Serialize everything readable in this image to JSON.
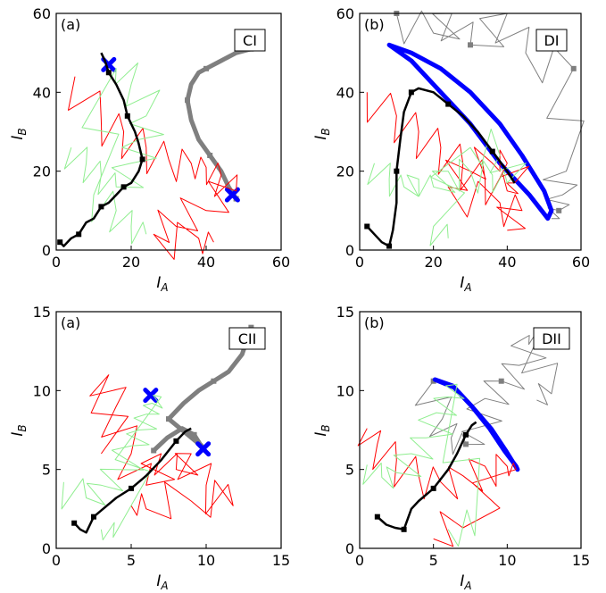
{
  "colors": {
    "black": "#000000",
    "gray": "#7f7f7f",
    "red": "#ff0000",
    "lightgreen": "#90ee90",
    "blue": "#0000ff"
  },
  "chart_data": [
    {
      "type": "line",
      "panel_tag": "(a)",
      "box_label": "CI",
      "xlabel": "I",
      "xlabel_sub": "A",
      "ylabel": "I",
      "ylabel_sub": "B",
      "xlim": [
        0,
        60
      ],
      "ylim": [
        0,
        60
      ],
      "xticks": [
        0,
        20,
        40,
        60
      ],
      "yticks": [
        0,
        20,
        40,
        60
      ],
      "series": [
        {
          "color": "black",
          "kind": "path",
          "points": [
            [
              1,
              2
            ],
            [
              2,
              1
            ],
            [
              4,
              3
            ],
            [
              6,
              4
            ],
            [
              8,
              7
            ],
            [
              10,
              8
            ],
            [
              12,
              11
            ],
            [
              14,
              12
            ],
            [
              16,
              14
            ],
            [
              18,
              16
            ],
            [
              20,
              17
            ],
            [
              22,
              20
            ],
            [
              23,
              23
            ],
            [
              22,
              27
            ],
            [
              21,
              30
            ],
            [
              19,
              34
            ],
            [
              18,
              38
            ],
            [
              16,
              42
            ],
            [
              14,
              45
            ],
            [
              13,
              48
            ],
            [
              12,
              50
            ]
          ]
        },
        {
          "color": "gray",
          "kind": "path",
          "points": [
            [
              48,
              13
            ],
            [
              46,
              16
            ],
            [
              44,
              20
            ],
            [
              41,
              24
            ],
            [
              38,
              28
            ],
            [
              36,
              33
            ],
            [
              35,
              38
            ],
            [
              36,
              42
            ],
            [
              38,
              45
            ],
            [
              40,
              46
            ],
            [
              44,
              48
            ],
            [
              48,
              50
            ],
            [
              52,
              51
            ],
            [
              55,
              51
            ]
          ]
        },
        {
          "color": "red",
          "kind": "fan",
          "points": [
            [
              5,
              44
            ],
            [
              12,
              33
            ],
            [
              18,
              30
            ],
            [
              24,
              26
            ],
            [
              30,
              23
            ],
            [
              36,
              22
            ],
            [
              40,
              21
            ],
            [
              44,
              19
            ],
            [
              48,
              15
            ],
            [
              40,
              10
            ],
            [
              32,
              6
            ],
            [
              26,
              4
            ],
            [
              38,
              3
            ],
            [
              42,
              2
            ]
          ]
        },
        {
          "color": "lightgreen",
          "kind": "fan",
          "points": [
            [
              4,
              26
            ],
            [
              8,
              22
            ],
            [
              12,
              19
            ],
            [
              16,
              16
            ],
            [
              20,
              22
            ],
            [
              22,
              28
            ],
            [
              24,
              34
            ],
            [
              20,
              42
            ],
            [
              16,
              46
            ],
            [
              10,
              14
            ],
            [
              16,
              10
            ],
            [
              20,
              6
            ],
            [
              24,
              4
            ]
          ]
        },
        {
          "color": "blue",
          "kind": "marker",
          "points": [
            [
              14,
              47
            ],
            [
              47,
              14
            ]
          ]
        }
      ]
    },
    {
      "type": "line",
      "panel_tag": "(b)",
      "box_label": "DI",
      "xlabel": "I",
      "xlabel_sub": "A",
      "ylabel": "I",
      "ylabel_sub": "B",
      "xlim": [
        0,
        60
      ],
      "ylim": [
        0,
        60
      ],
      "xticks": [
        0,
        20,
        40,
        60
      ],
      "yticks": [
        0,
        20,
        40,
        60
      ],
      "series": [
        {
          "color": "black",
          "kind": "path",
          "points": [
            [
              2,
              6
            ],
            [
              4,
              4
            ],
            [
              6,
              2
            ],
            [
              8,
              1
            ],
            [
              9,
              5
            ],
            [
              10,
              12
            ],
            [
              10,
              20
            ],
            [
              11,
              28
            ],
            [
              12,
              35
            ],
            [
              14,
              40
            ],
            [
              16,
              41
            ],
            [
              20,
              40
            ],
            [
              24,
              37
            ],
            [
              28,
              34
            ],
            [
              32,
              30
            ],
            [
              36,
              25
            ],
            [
              40,
              20
            ],
            [
              42,
              17
            ]
          ]
        },
        {
          "color": "gray",
          "kind": "fan",
          "points": [
            [
              10,
              60
            ],
            [
              20,
              55
            ],
            [
              25,
              60
            ],
            [
              30,
              52
            ],
            [
              40,
              60
            ],
            [
              45,
              50
            ],
            [
              58,
              46
            ],
            [
              56,
              20
            ],
            [
              55,
              14
            ],
            [
              54,
              10
            ],
            [
              52,
              8
            ]
          ]
        },
        {
          "color": "blue",
          "kind": "loop",
          "points": [
            [
              8,
              52
            ],
            [
              14,
              50
            ],
            [
              22,
              46
            ],
            [
              30,
              40
            ],
            [
              38,
              32
            ],
            [
              44,
              24
            ],
            [
              50,
              15
            ],
            [
              52,
              10
            ],
            [
              51,
              8
            ],
            [
              46,
              14
            ],
            [
              38,
              22
            ],
            [
              30,
              32
            ],
            [
              22,
              40
            ],
            [
              14,
              48
            ],
            [
              8,
              52
            ]
          ]
        },
        {
          "color": "red",
          "kind": "fan",
          "points": [
            [
              2,
              40
            ],
            [
              10,
              34
            ],
            [
              16,
              30
            ],
            [
              22,
              26
            ],
            [
              28,
              22
            ],
            [
              34,
              18
            ],
            [
              40,
              15
            ],
            [
              42,
              17
            ],
            [
              40,
              22
            ],
            [
              36,
              22
            ],
            [
              30,
              20
            ],
            [
              24,
              16
            ],
            [
              38,
              12
            ],
            [
              44,
              10
            ],
            [
              40,
              5
            ]
          ]
        },
        {
          "color": "lightgreen",
          "kind": "fan",
          "points": [
            [
              4,
              22
            ],
            [
              8,
              18
            ],
            [
              12,
              16
            ],
            [
              16,
              18
            ],
            [
              20,
              16
            ],
            [
              24,
              20
            ],
            [
              30,
              20
            ],
            [
              36,
              19
            ],
            [
              40,
              17
            ],
            [
              38,
              24
            ],
            [
              30,
              26
            ],
            [
              20,
              6
            ],
            [
              24,
              3
            ]
          ]
        }
      ]
    },
    {
      "type": "line",
      "panel_tag": "(a)",
      "box_label": "CII",
      "xlabel": "I",
      "xlabel_sub": "A",
      "ylabel": "I",
      "ylabel_sub": "B",
      "xlim": [
        0,
        15
      ],
      "ylim": [
        0,
        15
      ],
      "xticks": [
        0,
        5,
        10,
        15
      ],
      "yticks": [
        0,
        5,
        10,
        15
      ],
      "series": [
        {
          "color": "black",
          "kind": "path",
          "points": [
            [
              1.2,
              1.6
            ],
            [
              1.6,
              1.2
            ],
            [
              2,
              1.0
            ],
            [
              2.5,
              2
            ],
            [
              3,
              2.4
            ],
            [
              4,
              3.2
            ],
            [
              5,
              3.8
            ],
            [
              6,
              4.6
            ],
            [
              7,
              5.6
            ],
            [
              8,
              6.8
            ],
            [
              8.6,
              7.4
            ],
            [
              9,
              7.6
            ]
          ]
        },
        {
          "color": "gray",
          "kind": "path",
          "points": [
            [
              6.5,
              6.2
            ],
            [
              7.4,
              7.0
            ],
            [
              8.4,
              7.6
            ],
            [
              9.2,
              7.2
            ],
            [
              9.6,
              6.6
            ],
            [
              9.8,
              6.4
            ],
            [
              7.5,
              8.2
            ],
            [
              8.5,
              9.2
            ],
            [
              9.5,
              10.0
            ],
            [
              10.5,
              10.6
            ],
            [
              11.5,
              11.2
            ],
            [
              12.4,
              12.3
            ],
            [
              13,
              14
            ]
          ]
        },
        {
          "color": "red",
          "kind": "fan",
          "points": [
            [
              3,
              6
            ],
            [
              3.5,
              11
            ],
            [
              4,
              9
            ],
            [
              5,
              6
            ],
            [
              6,
              4
            ],
            [
              7,
              6
            ],
            [
              8,
              5
            ],
            [
              9,
              6
            ],
            [
              10,
              4
            ],
            [
              11.8,
              2.7
            ],
            [
              9,
              3
            ],
            [
              6,
              2.5
            ],
            [
              5,
              2.7
            ]
          ]
        },
        {
          "color": "lightgreen",
          "kind": "fan",
          "points": [
            [
              0.5,
              4.2
            ],
            [
              2,
              3.2
            ],
            [
              3,
              4
            ],
            [
              4,
              5
            ],
            [
              5,
              6.5
            ],
            [
              5.5,
              7.5
            ],
            [
              6,
              8.5
            ],
            [
              6.4,
              9.2
            ],
            [
              7,
              9.6
            ],
            [
              3.8,
              0.7
            ],
            [
              3,
              1.2
            ]
          ]
        },
        {
          "color": "blue",
          "kind": "marker",
          "points": [
            [
              6.3,
              9.7
            ],
            [
              9.8,
              6.3
            ]
          ]
        }
      ]
    },
    {
      "type": "line",
      "panel_tag": "(b)",
      "box_label": "DII",
      "xlabel": "I",
      "xlabel_sub": "A",
      "ylabel": "I",
      "ylabel_sub": "B",
      "xlim": [
        0,
        15
      ],
      "ylim": [
        0,
        15
      ],
      "xticks": [
        0,
        5,
        10,
        15
      ],
      "yticks": [
        0,
        5,
        10,
        15
      ],
      "series": [
        {
          "color": "black",
          "kind": "path",
          "points": [
            [
              1.2,
              2
            ],
            [
              1.8,
              1.5
            ],
            [
              2.4,
              1.3
            ],
            [
              3,
              1.2
            ],
            [
              3.5,
              2.5
            ],
            [
              4,
              3
            ],
            [
              5,
              3.8
            ],
            [
              6,
              5
            ],
            [
              6.6,
              6
            ],
            [
              7.2,
              7.2
            ],
            [
              7.6,
              7.8
            ],
            [
              7.9,
              8.0
            ]
          ]
        },
        {
          "color": "gray",
          "kind": "fan",
          "points": [
            [
              5,
              10.6
            ],
            [
              5.6,
              8.2
            ],
            [
              6.2,
              7
            ],
            [
              7.2,
              6.6
            ],
            [
              7.8,
              7.6
            ],
            [
              8.5,
              9.5
            ],
            [
              9.6,
              10.6
            ],
            [
              10.8,
              11.6
            ],
            [
              11.5,
              13.5
            ],
            [
              12,
              13.2
            ],
            [
              13,
              9.8
            ],
            [
              12,
              9.4
            ]
          ]
        },
        {
          "color": "blue",
          "kind": "loop",
          "points": [
            [
              5.1,
              10.7
            ],
            [
              6.4,
              10.2
            ],
            [
              7.6,
              9.0
            ],
            [
              8.8,
              7.6
            ],
            [
              9.8,
              6.2
            ],
            [
              10.6,
              5.2
            ],
            [
              10.7,
              5.0
            ],
            [
              9.9,
              6.2
            ],
            [
              8.9,
              7.6
            ],
            [
              7.6,
              9.0
            ],
            [
              6.3,
              10.3
            ],
            [
              5.1,
              10.7
            ]
          ]
        },
        {
          "color": "red",
          "kind": "fan",
          "points": [
            [
              0.5,
              7.6
            ],
            [
              1.2,
              6.6
            ],
            [
              2.5,
              5.6
            ],
            [
              4,
              4.6
            ],
            [
              5.5,
              4.2
            ],
            [
              7,
              4.6
            ],
            [
              8.5,
              5.2
            ],
            [
              10,
              5.2
            ],
            [
              10.6,
              5.0
            ],
            [
              7,
              1.3
            ],
            [
              5,
              0.6
            ]
          ]
        },
        {
          "color": "lightgreen",
          "kind": "fan",
          "points": [
            [
              0.5,
              5.3
            ],
            [
              1.5,
              4.5
            ],
            [
              2.5,
              4.8
            ],
            [
              3.5,
              6
            ],
            [
              4.5,
              7
            ],
            [
              5.2,
              8.6
            ],
            [
              6,
              9.6
            ],
            [
              6.6,
              10.4
            ],
            [
              7.8,
              0.8
            ],
            [
              6,
              1.2
            ]
          ]
        }
      ]
    }
  ]
}
